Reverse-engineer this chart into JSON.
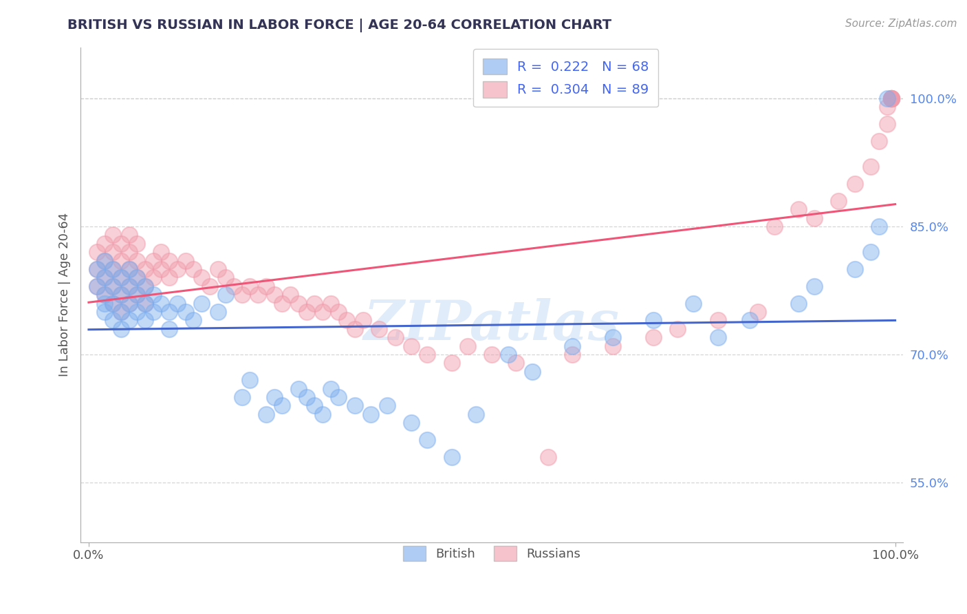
{
  "title": "BRITISH VS RUSSIAN IN LABOR FORCE | AGE 20-64 CORRELATION CHART",
  "source_text": "Source: ZipAtlas.com",
  "ylabel": "In Labor Force | Age 20-64",
  "xlim": [
    -0.01,
    1.01
  ],
  "ylim": [
    0.48,
    1.06
  ],
  "x_ticks": [
    0.0,
    1.0
  ],
  "x_tick_labels": [
    "0.0%",
    "100.0%"
  ],
  "y_ticks": [
    0.55,
    0.7,
    0.85,
    1.0
  ],
  "y_tick_labels": [
    "55.0%",
    "70.0%",
    "85.0%",
    "100.0%"
  ],
  "british_color": "#7aadee",
  "russian_color": "#f09aaa",
  "british_line_color": "#4466cc",
  "russian_line_color": "#ee5577",
  "british_R": 0.222,
  "british_N": 68,
  "russian_R": 0.304,
  "russian_N": 89,
  "background_color": "#ffffff",
  "grid_color": "#cccccc",
  "watermark_color": "#c8ddf5",
  "title_color": "#333355",
  "source_color": "#999999",
  "ytick_color": "#5588ee",
  "legend_text_color": "#4466ee",
  "legend_N_color": "#333333",
  "british_x": [
    0.01,
    0.01,
    0.02,
    0.02,
    0.02,
    0.02,
    0.02,
    0.03,
    0.03,
    0.03,
    0.03,
    0.04,
    0.04,
    0.04,
    0.04,
    0.05,
    0.05,
    0.05,
    0.05,
    0.06,
    0.06,
    0.06,
    0.07,
    0.07,
    0.07,
    0.08,
    0.08,
    0.09,
    0.1,
    0.1,
    0.11,
    0.12,
    0.13,
    0.14,
    0.16,
    0.17,
    0.19,
    0.2,
    0.22,
    0.23,
    0.24,
    0.26,
    0.27,
    0.28,
    0.29,
    0.3,
    0.31,
    0.33,
    0.35,
    0.37,
    0.4,
    0.42,
    0.45,
    0.48,
    0.52,
    0.55,
    0.6,
    0.65,
    0.7,
    0.75,
    0.78,
    0.82,
    0.88,
    0.9,
    0.95,
    0.97,
    0.98,
    0.99
  ],
  "british_y": [
    0.78,
    0.8,
    0.77,
    0.79,
    0.81,
    0.76,
    0.75,
    0.78,
    0.8,
    0.76,
    0.74,
    0.79,
    0.77,
    0.75,
    0.73,
    0.8,
    0.78,
    0.76,
    0.74,
    0.79,
    0.77,
    0.75,
    0.78,
    0.76,
    0.74,
    0.77,
    0.75,
    0.76,
    0.75,
    0.73,
    0.76,
    0.75,
    0.74,
    0.76,
    0.75,
    0.77,
    0.65,
    0.67,
    0.63,
    0.65,
    0.64,
    0.66,
    0.65,
    0.64,
    0.63,
    0.66,
    0.65,
    0.64,
    0.63,
    0.64,
    0.62,
    0.6,
    0.58,
    0.63,
    0.7,
    0.68,
    0.71,
    0.72,
    0.74,
    0.76,
    0.72,
    0.74,
    0.76,
    0.78,
    0.8,
    0.82,
    0.85,
    1.0
  ],
  "russian_x": [
    0.01,
    0.01,
    0.01,
    0.02,
    0.02,
    0.02,
    0.02,
    0.03,
    0.03,
    0.03,
    0.03,
    0.03,
    0.04,
    0.04,
    0.04,
    0.04,
    0.04,
    0.05,
    0.05,
    0.05,
    0.05,
    0.05,
    0.06,
    0.06,
    0.06,
    0.06,
    0.07,
    0.07,
    0.07,
    0.08,
    0.08,
    0.09,
    0.09,
    0.1,
    0.1,
    0.11,
    0.12,
    0.13,
    0.14,
    0.15,
    0.16,
    0.17,
    0.18,
    0.19,
    0.2,
    0.21,
    0.22,
    0.23,
    0.24,
    0.25,
    0.26,
    0.27,
    0.28,
    0.29,
    0.3,
    0.31,
    0.32,
    0.33,
    0.34,
    0.36,
    0.38,
    0.4,
    0.42,
    0.45,
    0.47,
    0.5,
    0.53,
    0.57,
    0.6,
    0.65,
    0.7,
    0.73,
    0.78,
    0.83,
    0.85,
    0.88,
    0.9,
    0.93,
    0.95,
    0.97,
    0.98,
    0.99,
    0.99,
    0.995,
    0.995,
    0.995,
    0.995,
    0.995,
    0.995
  ],
  "russian_y": [
    0.8,
    0.82,
    0.78,
    0.79,
    0.81,
    0.83,
    0.77,
    0.78,
    0.8,
    0.82,
    0.84,
    0.76,
    0.79,
    0.81,
    0.83,
    0.77,
    0.75,
    0.8,
    0.82,
    0.78,
    0.76,
    0.84,
    0.79,
    0.81,
    0.77,
    0.83,
    0.78,
    0.8,
    0.76,
    0.79,
    0.81,
    0.8,
    0.82,
    0.79,
    0.81,
    0.8,
    0.81,
    0.8,
    0.79,
    0.78,
    0.8,
    0.79,
    0.78,
    0.77,
    0.78,
    0.77,
    0.78,
    0.77,
    0.76,
    0.77,
    0.76,
    0.75,
    0.76,
    0.75,
    0.76,
    0.75,
    0.74,
    0.73,
    0.74,
    0.73,
    0.72,
    0.71,
    0.7,
    0.69,
    0.71,
    0.7,
    0.69,
    0.58,
    0.7,
    0.71,
    0.72,
    0.73,
    0.74,
    0.75,
    0.85,
    0.87,
    0.86,
    0.88,
    0.9,
    0.92,
    0.95,
    0.97,
    0.99,
    1.0,
    1.0,
    1.0,
    1.0,
    1.0,
    1.0
  ]
}
